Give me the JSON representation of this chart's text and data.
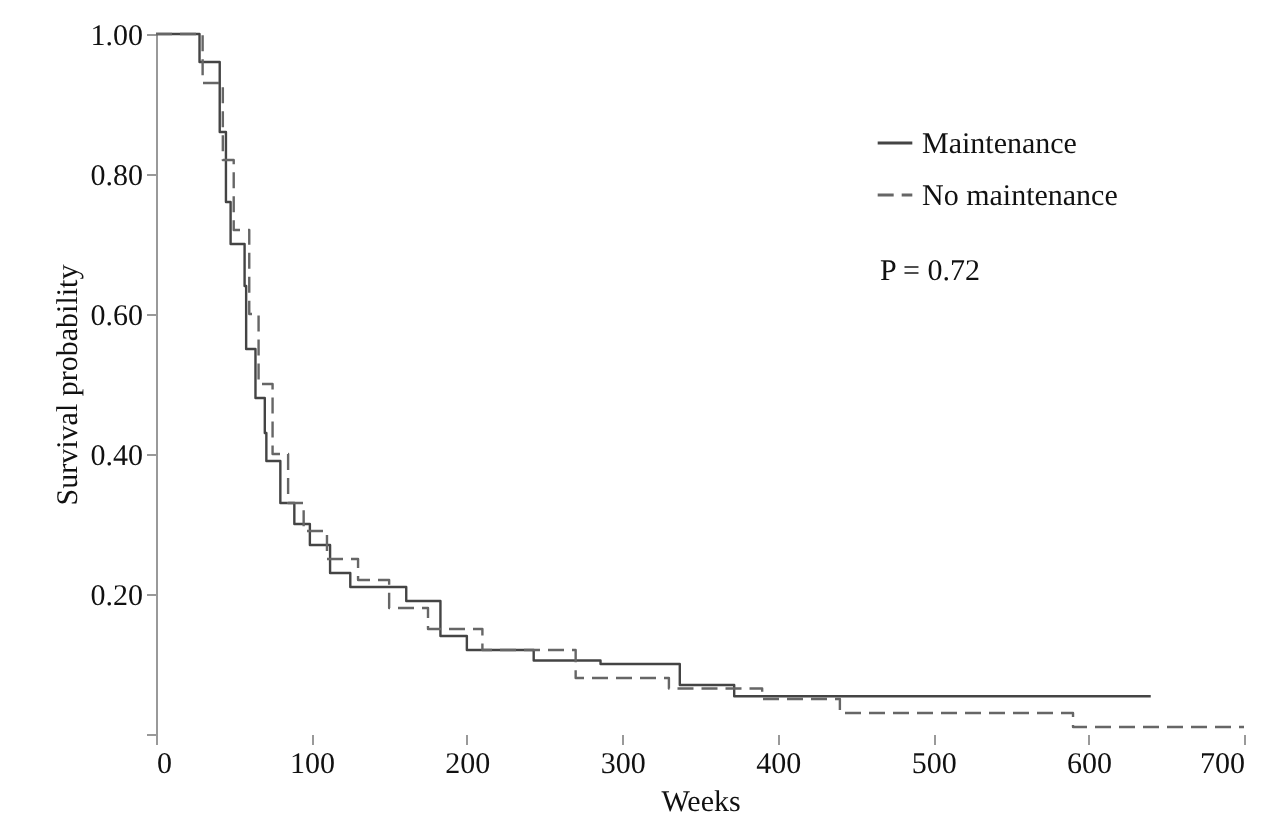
{
  "chart_data": {
    "type": "step",
    "xlabel": "Weeks",
    "ylabel": "Survival probability",
    "xlim": [
      0,
      700
    ],
    "xticks": [
      0,
      100,
      200,
      300,
      400,
      500,
      600,
      700
    ],
    "ylim": [
      0,
      1
    ],
    "yticks": [
      {
        "value": 0,
        "label": null
      },
      {
        "value": 0.2,
        "label": "0.20"
      },
      {
        "value": 0.4,
        "label": "0.40"
      },
      {
        "value": 0.6,
        "label": "0.60"
      },
      {
        "value": 0.8,
        "label": "0.80"
      },
      {
        "value": 1,
        "label": "1.00"
      }
    ],
    "grid": false,
    "legend": "top right",
    "annotations": [
      "P = 0.72"
    ],
    "series": [
      {
        "name": "Maintenance",
        "color": "#444444",
        "line_style": "solid",
        "x": [
          0,
          28,
          41,
          45,
          48,
          57,
          58,
          64,
          70,
          71,
          80,
          89,
          99,
          112,
          125,
          161,
          183,
          200,
          243,
          286,
          337,
          372,
          640
        ],
        "values": [
          1,
          0.96,
          0.86,
          0.76,
          0.7,
          0.64,
          0.55,
          0.48,
          0.43,
          0.39,
          0.33,
          0.3,
          0.27,
          0.23,
          0.21,
          0.19,
          0.14,
          0.12,
          0.105,
          0.1,
          0.07,
          0.054,
          0.054
        ]
      },
      {
        "name": "No maintenance",
        "color": "#666666",
        "line_style": "dashed",
        "x": [
          0,
          30,
          43,
          50,
          60,
          66,
          75,
          85,
          95,
          110,
          130,
          150,
          175,
          210,
          270,
          330,
          390,
          440,
          590,
          700
        ],
        "values": [
          1,
          0.93,
          0.82,
          0.72,
          0.6,
          0.5,
          0.4,
          0.33,
          0.29,
          0.25,
          0.22,
          0.18,
          0.15,
          0.12,
          0.08,
          0.065,
          0.05,
          0.03,
          0.01,
          0.01
        ]
      }
    ]
  }
}
